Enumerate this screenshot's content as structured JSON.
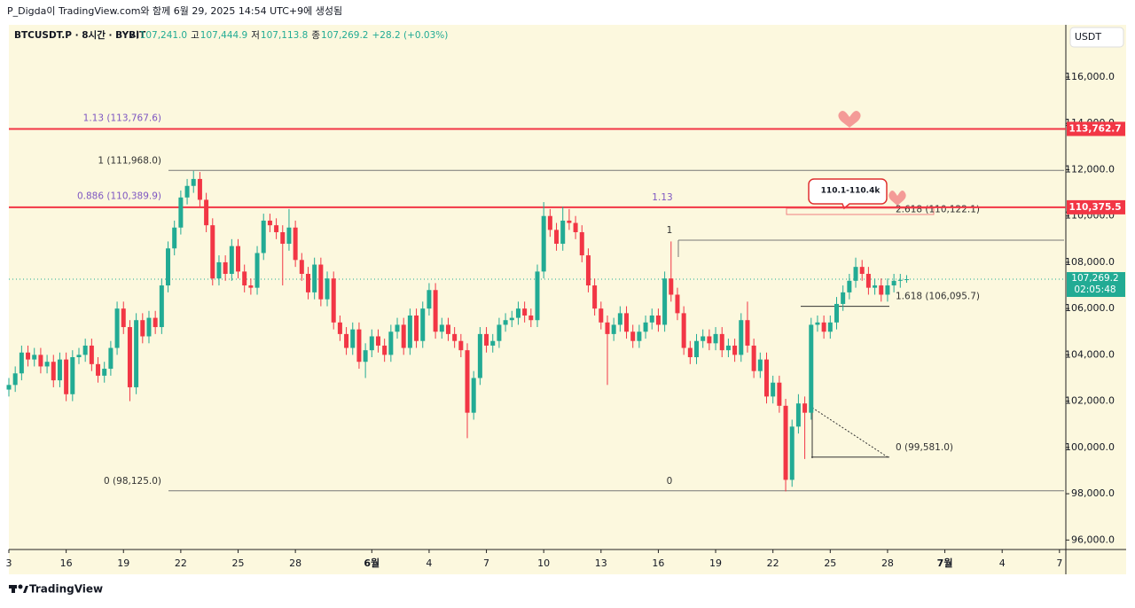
{
  "caption": "P_Digda이 TradingView.com와 함께 6월 29, 2025 14:54 UTC+9에 생성됨",
  "footer": "TradingView",
  "chart_data": {
    "type": "candlestick",
    "header": {
      "symbol": "BTCUSDT.P · 8시간 · BYBIT",
      "ohlc": [
        {
          "key": "시",
          "value": 107241.0,
          "label": "107,241.0"
        },
        {
          "key": "고",
          "value": 107444.9,
          "label": "107,444.9"
        },
        {
          "key": "저",
          "value": 107113.8,
          "label": "107,113.8"
        },
        {
          "key": "종",
          "value": 107269.2,
          "label": "107,269.2"
        }
      ],
      "change": "+28.2 (+0.03%)"
    },
    "currency": "USDT",
    "up_color": "#22ab94",
    "down_color": "#f23645",
    "x": [
      0,
      8,
      16,
      24,
      32,
      40,
      48,
      56,
      64,
      72,
      80,
      88,
      96,
      104,
      112,
      120,
      128,
      136,
      144,
      152,
      160,
      168,
      176,
      184,
      192,
      200,
      208,
      216,
      224,
      232,
      240,
      248,
      256,
      264,
      272,
      280,
      288,
      296,
      304,
      312,
      320,
      328,
      336,
      344,
      352,
      360,
      368,
      376,
      384,
      392,
      400,
      408,
      416,
      424,
      432,
      440,
      448,
      456,
      464,
      472,
      480,
      488,
      496,
      504,
      512,
      520,
      528,
      536,
      544,
      552,
      560,
      568,
      576,
      584,
      592,
      600,
      608,
      616,
      624,
      632,
      640,
      648,
      656,
      664,
      672,
      680,
      688,
      696,
      704,
      712,
      720,
      728,
      736,
      744,
      752,
      760,
      768,
      776,
      784,
      792,
      800,
      808,
      816,
      824,
      832,
      840,
      848,
      856,
      864,
      872,
      880,
      888,
      896,
      904,
      912,
      920,
      928,
      936,
      944,
      952,
      960,
      968,
      976,
      984,
      992,
      1000,
      1008,
      1016,
      1024,
      1032,
      1040,
      1048,
      1056,
      1064,
      1072,
      1080,
      1088,
      1096,
      1104,
      1112,
      1120,
      1128
    ],
    "open": [
      102500,
      102700,
      103200,
      104100,
      103800,
      104000,
      103500,
      103700,
      102900,
      103800,
      102300,
      103900,
      104000,
      104400,
      103600,
      103100,
      103400,
      104300,
      106000,
      105200,
      102600,
      105500,
      104800,
      105600,
      105200,
      107000,
      108600,
      109500,
      110800,
      111300,
      111600,
      110700,
      109600,
      107300,
      108000,
      107500,
      108700,
      107600,
      107000,
      106900,
      108400,
      109800,
      109600,
      109300,
      108800,
      109500,
      108100,
      107500,
      106700,
      107900,
      106400,
      107300,
      105400,
      104900,
      104300,
      105100,
      103700,
      104200,
      104800,
      104400,
      104000,
      105000,
      105300,
      104300,
      105700,
      104600,
      106000,
      106800,
      105000,
      105300,
      104900,
      104600,
      104200,
      101500,
      103000,
      104900,
      104400,
      104600,
      105300,
      105500,
      105600,
      106000,
      105700,
      105500,
      107600,
      110000,
      109400,
      108800,
      109800,
      109700,
      109300,
      108300,
      107000,
      106000,
      105400,
      104900,
      105300,
      105800,
      105000,
      104600,
      105000,
      105400,
      105700,
      105300,
      107300,
      106600,
      105800,
      104300,
      103900,
      104600,
      104800,
      104500,
      104900,
      104200,
      104400,
      104000,
      105500,
      104400,
      103300,
      103800,
      102200,
      102800,
      101800,
      98600,
      100900,
      101900,
      101500,
      105300,
      105400,
      105000,
      105400,
      106200,
      106700,
      107200,
      107800,
      107500,
      106900,
      107000,
      106600,
      107000,
      107200,
      107241
    ],
    "high": [
      103000,
      103500,
      104400,
      104400,
      104300,
      104300,
      104000,
      104000,
      104100,
      104100,
      104200,
      104300,
      104700,
      104700,
      103900,
      103700,
      104600,
      106300,
      106300,
      105500,
      105800,
      105800,
      105900,
      105900,
      107300,
      108900,
      109800,
      111100,
      111600,
      111950,
      111900,
      111000,
      109900,
      108300,
      108300,
      109000,
      109000,
      107900,
      107300,
      108700,
      110100,
      110100,
      109900,
      109600,
      110300,
      109800,
      108400,
      107800,
      108200,
      108200,
      107600,
      107600,
      105700,
      105200,
      105400,
      105400,
      104500,
      105100,
      105100,
      104700,
      105300,
      105600,
      105600,
      106000,
      106000,
      106300,
      107100,
      107100,
      105600,
      105600,
      105200,
      104900,
      104500,
      103300,
      105200,
      105200,
      104900,
      105600,
      105800,
      105900,
      106300,
      106300,
      106000,
      107900,
      110600,
      110300,
      109700,
      110400,
      110300,
      110000,
      109600,
      108600,
      107300,
      106300,
      105700,
      105600,
      106100,
      106100,
      105300,
      105300,
      105700,
      106000,
      106000,
      107600,
      108900,
      106900,
      106100,
      104600,
      104900,
      105100,
      105100,
      105200,
      105200,
      104700,
      104700,
      105800,
      106300,
      104700,
      104100,
      104100,
      103100,
      103100,
      102100,
      101200,
      102300,
      102200,
      105600,
      105700,
      105700,
      105700,
      106500,
      107000,
      107500,
      108200,
      108100,
      107800,
      107300,
      107300,
      107300,
      107500,
      107500,
      107444.9
    ],
    "low": [
      102200,
      102400,
      102900,
      103500,
      103500,
      103200,
      103200,
      102600,
      102600,
      102000,
      102000,
      103600,
      103700,
      103300,
      102800,
      102800,
      103100,
      104000,
      104900,
      102000,
      102300,
      104500,
      104500,
      104900,
      104900,
      106700,
      108300,
      109200,
      110500,
      111000,
      110400,
      109300,
      107000,
      107000,
      107200,
      107200,
      107300,
      106700,
      106600,
      106600,
      108100,
      109300,
      109000,
      107000,
      108500,
      107800,
      107200,
      106400,
      106400,
      106100,
      106100,
      105100,
      104600,
      104000,
      104000,
      103400,
      103000,
      103900,
      104100,
      103700,
      103700,
      104700,
      104000,
      104000,
      104300,
      104300,
      105700,
      104700,
      104700,
      104600,
      104300,
      103900,
      100400,
      101200,
      102700,
      104100,
      104100,
      104300,
      105000,
      105200,
      105300,
      105400,
      105200,
      105200,
      107300,
      109100,
      108500,
      108500,
      109400,
      109000,
      108000,
      106700,
      105700,
      105100,
      102700,
      104600,
      105000,
      104700,
      104300,
      104300,
      104700,
      105100,
      105000,
      105000,
      106300,
      105500,
      104000,
      103600,
      103600,
      104300,
      104200,
      104200,
      103900,
      103900,
      103700,
      103700,
      104100,
      103000,
      103000,
      101900,
      101900,
      101500,
      98100,
      98300,
      100600,
      99500,
      101200,
      105000,
      104700,
      104700,
      105100,
      105900,
      106400,
      106900,
      107200,
      106600,
      106600,
      106300,
      106300,
      106700,
      106900,
      107113.8
    ],
    "close": [
      102700,
      103200,
      104100,
      103800,
      104000,
      103500,
      103700,
      102900,
      103800,
      102300,
      103900,
      104000,
      104400,
      103600,
      103100,
      103400,
      104300,
      106000,
      105200,
      102600,
      105500,
      104800,
      105600,
      105200,
      107000,
      108600,
      109500,
      110800,
      111300,
      111600,
      110700,
      109600,
      107300,
      108000,
      107500,
      108700,
      107600,
      107000,
      106900,
      108400,
      109800,
      109600,
      109300,
      108800,
      109500,
      108100,
      107500,
      106700,
      107900,
      106400,
      107300,
      105400,
      104900,
      104300,
      105100,
      103700,
      104200,
      104800,
      104400,
      104000,
      105000,
      105300,
      104300,
      105700,
      104600,
      106000,
      106800,
      105000,
      105300,
      104900,
      104600,
      104200,
      101500,
      103000,
      104900,
      104400,
      104600,
      105300,
      105500,
      105600,
      106000,
      105700,
      105500,
      107600,
      110000,
      109400,
      108800,
      109800,
      109700,
      109300,
      108300,
      107000,
      106000,
      105400,
      104900,
      105300,
      105800,
      105000,
      104600,
      105000,
      105400,
      105700,
      105300,
      107300,
      106600,
      105800,
      104300,
      103900,
      104600,
      104800,
      104500,
      104900,
      104200,
      104400,
      104000,
      105500,
      104400,
      103300,
      103800,
      102200,
      102800,
      101800,
      98600,
      100900,
      101900,
      101500,
      105300,
      105400,
      105000,
      105400,
      106200,
      106700,
      107200,
      107800,
      107500,
      106900,
      107000,
      106600,
      107000,
      107200,
      107241,
      107269.2
    ],
    "xlim": [
      0,
      1328
    ],
    "xticks": [
      {
        "value": 0,
        "label": "3"
      },
      {
        "value": 72,
        "label": "16"
      },
      {
        "value": 144,
        "label": "19"
      },
      {
        "value": 216,
        "label": "22"
      },
      {
        "value": 288,
        "label": "25"
      },
      {
        "value": 360,
        "label": "28"
      },
      {
        "value": 456,
        "label": "6월"
      },
      {
        "value": 528,
        "label": "4"
      },
      {
        "value": 600,
        "label": "7"
      },
      {
        "value": 672,
        "label": "10"
      },
      {
        "value": 744,
        "label": "13"
      },
      {
        "value": 816,
        "label": "16"
      },
      {
        "value": 888,
        "label": "19"
      },
      {
        "value": 960,
        "label": "22"
      },
      {
        "value": 1032,
        "label": "25"
      },
      {
        "value": 1104,
        "label": "28"
      },
      {
        "value": 1176,
        "label": "7월"
      },
      {
        "value": 1248,
        "label": "4"
      },
      {
        "value": 1320,
        "label": "7"
      }
    ],
    "ylim": [
      95590,
      118260
    ],
    "yticks": [
      {
        "value": 96000,
        "label": "96,000.0"
      },
      {
        "value": 98000,
        "label": "98,000.0"
      },
      {
        "value": 100000,
        "label": "100,000.0"
      },
      {
        "value": 102000,
        "label": "102,000.0"
      },
      {
        "value": 104000,
        "label": "104,000.0"
      },
      {
        "value": 106000,
        "label": "106,000.0"
      },
      {
        "value": 108000,
        "label": "108,000.0"
      },
      {
        "value": 110000,
        "label": "110,000.0"
      },
      {
        "value": 112000,
        "label": "112,000.0"
      },
      {
        "value": 114000,
        "label": "114,000.0"
      },
      {
        "value": 116000,
        "label": "116,000.0"
      }
    ],
    "grid": false,
    "price_lines": [
      {
        "value": 113762.7,
        "label": "113,762.7",
        "color": "#f23645"
      },
      {
        "value": 110375.5,
        "label": "110,375.5",
        "color": "#f23645"
      }
    ],
    "last_price": {
      "value": 107269.2,
      "label": "107,269.2",
      "countdown": "02:05:48",
      "color": "#22ab94"
    },
    "levels": [
      {
        "value": 113767.6,
        "label": "1.13 (113,767.6)"
      },
      {
        "value": 111968,
        "label": "1 (111,968.0)"
      },
      {
        "value": 110389.9,
        "label": "0.886 (110,389.9)"
      },
      {
        "value": 98125,
        "label": "0 (98,125.0)"
      },
      {
        "value": 110122.1,
        "label": "2.618 (110,122.1)"
      },
      {
        "value": 106095.7,
        "label": "1.618 (106,095.7)"
      },
      {
        "value": 99581,
        "label": "0 (99,581.0)"
      }
    ],
    "texts": [
      "1.13",
      "1",
      "0"
    ],
    "note": "110.1-110.4k"
  }
}
